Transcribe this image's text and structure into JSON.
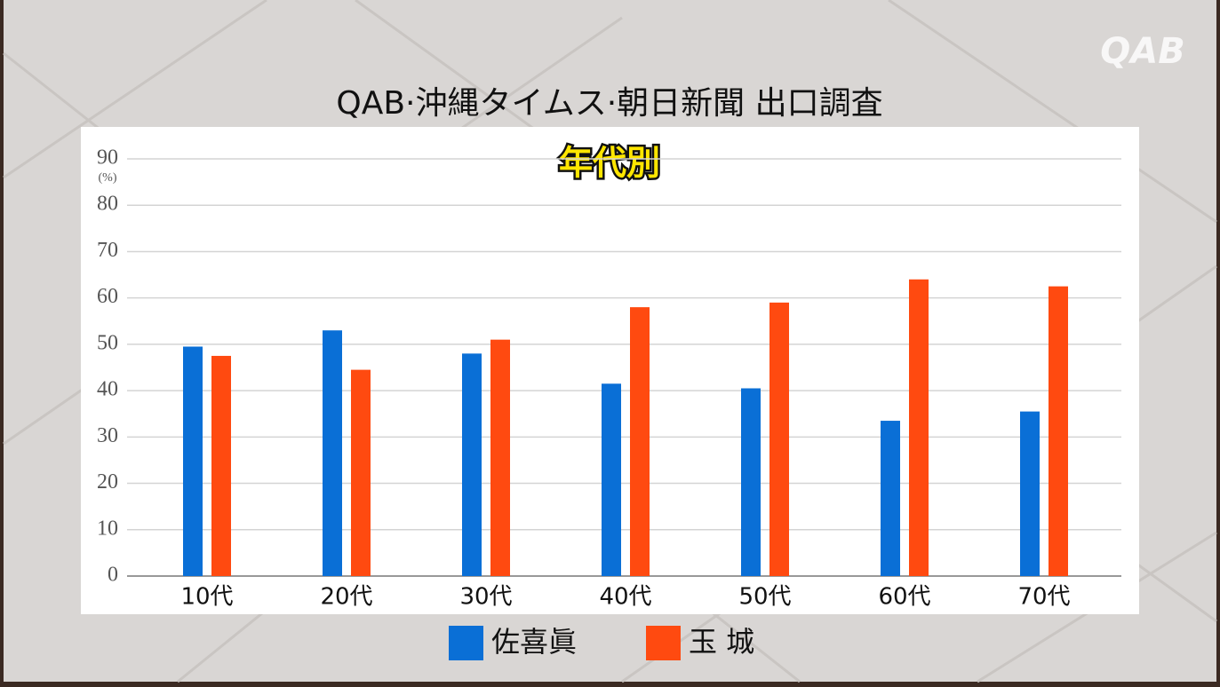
{
  "logo": "QAB",
  "chart_data": {
    "type": "bar",
    "title": "QAB·沖縄タイムス·朝日新聞 出口調査",
    "subtitle": "年代別",
    "unit_label": "(%)",
    "categories": [
      "10代",
      "20代",
      "30代",
      "40代",
      "50代",
      "60代",
      "70代"
    ],
    "series": [
      {
        "name": "佐喜眞",
        "color": "#0a6fd6",
        "values": [
          49.5,
          53,
          48,
          41.5,
          40.5,
          33.5,
          35.5
        ]
      },
      {
        "name": "玉 城",
        "color": "#ff4a10",
        "values": [
          47.5,
          44.5,
          51,
          58,
          59,
          64,
          62.5
        ]
      }
    ],
    "ylim": [
      0,
      90
    ],
    "yticks": [
      0,
      10,
      20,
      30,
      40,
      50,
      60,
      70,
      80,
      90
    ],
    "grid": true
  }
}
